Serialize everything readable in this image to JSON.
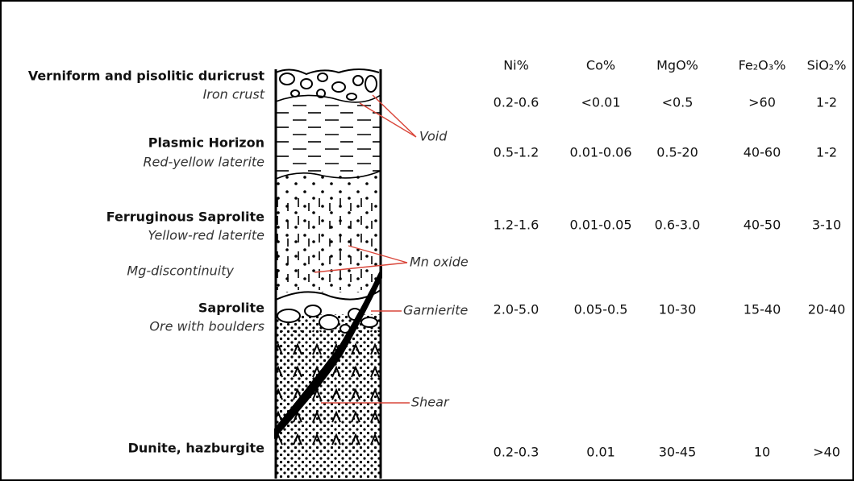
{
  "columns": [
    "Ni%",
    "Co%",
    "MgO%",
    "Fe₂O₃%",
    "SiO₂%"
  ],
  "layers": [
    {
      "name": "Verniform and pisolitic duricrust",
      "description": "Iron crust",
      "values": [
        "0.2-0.6",
        "<0.01",
        "<0.5",
        ">60",
        "1-2"
      ]
    },
    {
      "name": "Plasmic Horizon",
      "description": "Red-yellow laterite",
      "values": [
        "0.5-1.2",
        "0.01-0.06",
        "0.5-20",
        "40-60",
        "1-2"
      ]
    },
    {
      "name": "Ferruginous Saprolite",
      "description": "Yellow-red laterite",
      "values": [
        "1.2-1.6",
        "0.01-0.05",
        "0.6-3.0",
        "40-50",
        "3-10"
      ]
    },
    {
      "name": "Saprolite",
      "description": "Ore with boulders",
      "values": [
        "2.0-5.0",
        "0.05-0.5",
        "10-30",
        "15-40",
        "20-40"
      ]
    },
    {
      "name": "Dunite, hazburgite",
      "values": [
        "0.2-0.3",
        "0.01",
        "30-45",
        "10",
        ">40"
      ]
    }
  ],
  "mg_discontinuity": "Mg-discontinuity",
  "annotations": [
    "Void",
    "Mn oxide",
    "Garnierite",
    "Shear"
  ]
}
